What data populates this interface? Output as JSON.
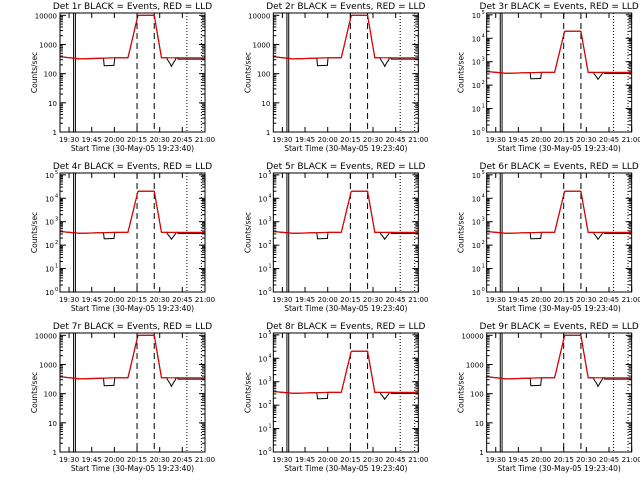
{
  "colors": {
    "events": "#000000",
    "lld": "#e00000",
    "axis": "#000000"
  },
  "chart_data": [
    {
      "type": "line",
      "title": "Det 1r BLACK = Events, RED = LLD",
      "xlabel": "Start Time (30-May-05 19:23:40)",
      "ylabel": "Counts/sec",
      "y_scale": "log",
      "ylim": [
        1,
        12000
      ],
      "y_tick_labels": [
        "1",
        "10",
        "100",
        "1000",
        "10000"
      ],
      "y_tick_values": [
        1,
        10,
        100,
        1000,
        10000
      ],
      "x_tick_labels": [
        "19:30",
        "19:45",
        "20:00",
        "20:15",
        "20:30",
        "20:45",
        "21:00"
      ],
      "x_tick_values": [
        19.5,
        19.75,
        20.0,
        20.25,
        20.5,
        20.75,
        21.0
      ],
      "xlim": [
        19.4,
        21.0
      ],
      "peak": 10000,
      "dashed_lines": [
        20.25,
        20.44
      ],
      "dotted_lines": [
        20.8,
        20.96
      ],
      "solid_lines": [
        19.55,
        19.57
      ]
    },
    {
      "type": "line",
      "title": "Det 2r BLACK = Events, RED = LLD",
      "xlabel": "Start Time (30-May-05 19:23:40)",
      "ylabel": "Counts/sec",
      "y_scale": "log",
      "ylim": [
        1,
        12000
      ],
      "y_tick_labels": [
        "1",
        "10",
        "100",
        "1000",
        "10000"
      ],
      "y_tick_values": [
        1,
        10,
        100,
        1000,
        10000
      ],
      "x_tick_labels": [
        "19:30",
        "19:45",
        "20:00",
        "20:15",
        "20:30",
        "20:45",
        "21:00"
      ],
      "x_tick_values": [
        19.5,
        19.75,
        20.0,
        20.25,
        20.5,
        20.75,
        21.0
      ],
      "xlim": [
        19.4,
        21.0
      ],
      "peak": 10000,
      "dashed_lines": [
        20.25,
        20.44
      ],
      "dotted_lines": [
        20.8,
        20.96
      ],
      "solid_lines": [
        19.55,
        19.57
      ]
    },
    {
      "type": "line",
      "title": "Det 3r BLACK = Events, RED = LLD",
      "xlabel": "Start Time (30-May-05 19:23:40)",
      "ylabel": "Counts/sec",
      "y_scale": "log",
      "ylim": [
        1,
        120000
      ],
      "y_tick_labels": [
        "10",
        "10",
        "10",
        "10",
        "10",
        "10"
      ],
      "y_tick_exponents": [
        "0",
        "1",
        "2",
        "3",
        "4",
        "5"
      ],
      "y_tick_values": [
        1,
        10,
        100,
        1000,
        10000,
        100000
      ],
      "x_tick_labels": [
        "19:30",
        "19:45",
        "20:00",
        "20:15",
        "20:30",
        "20:45",
        "21:00"
      ],
      "x_tick_values": [
        19.5,
        19.75,
        20.0,
        20.25,
        20.5,
        20.75,
        21.0
      ],
      "xlim": [
        19.4,
        21.0
      ],
      "peak": 20000,
      "dashed_lines": [
        20.25,
        20.44
      ],
      "dotted_lines": [
        20.8,
        20.96
      ],
      "solid_lines": [
        19.55,
        19.57
      ]
    },
    {
      "type": "line",
      "title": "Det 4r BLACK = Events, RED = LLD",
      "xlabel": "Start Time (30-May-05 19:23:40)",
      "ylabel": "Counts/sec",
      "y_scale": "log",
      "ylim": [
        1,
        120000
      ],
      "y_tick_labels": [
        "10",
        "10",
        "10",
        "10",
        "10",
        "10"
      ],
      "y_tick_exponents": [
        "0",
        "1",
        "2",
        "3",
        "4",
        "5"
      ],
      "y_tick_values": [
        1,
        10,
        100,
        1000,
        10000,
        100000
      ],
      "x_tick_labels": [
        "19:30",
        "19:45",
        "20:00",
        "20:15",
        "20:30",
        "20:45",
        "21:00"
      ],
      "x_tick_values": [
        19.5,
        19.75,
        20.0,
        20.25,
        20.5,
        20.75,
        21.0
      ],
      "xlim": [
        19.4,
        21.0
      ],
      "peak": 20000,
      "dashed_lines": [
        20.25,
        20.44
      ],
      "dotted_lines": [
        20.8,
        20.96
      ],
      "solid_lines": [
        19.55,
        19.57
      ]
    },
    {
      "type": "line",
      "title": "Det 5r BLACK = Events, RED = LLD",
      "xlabel": "Start Time (30-May-05 19:23:40)",
      "ylabel": "Counts/sec",
      "y_scale": "log",
      "ylim": [
        1,
        120000
      ],
      "y_tick_labels": [
        "10",
        "10",
        "10",
        "10",
        "10",
        "10"
      ],
      "y_tick_exponents": [
        "0",
        "1",
        "2",
        "3",
        "4",
        "5"
      ],
      "y_tick_values": [
        1,
        10,
        100,
        1000,
        10000,
        100000
      ],
      "x_tick_labels": [
        "19:30",
        "19:45",
        "20:00",
        "20:15",
        "20:30",
        "20:45",
        "21:00"
      ],
      "x_tick_values": [
        19.5,
        19.75,
        20.0,
        20.25,
        20.5,
        20.75,
        21.0
      ],
      "xlim": [
        19.4,
        21.0
      ],
      "peak": 20000,
      "dashed_lines": [
        20.25,
        20.44
      ],
      "dotted_lines": [
        20.8,
        20.96
      ],
      "solid_lines": [
        19.55,
        19.57
      ]
    },
    {
      "type": "line",
      "title": "Det 6r BLACK = Events, RED = LLD",
      "xlabel": "Start Time (30-May-05 19:23:40)",
      "ylabel": "Counts/sec",
      "y_scale": "log",
      "ylim": [
        1,
        120000
      ],
      "y_tick_labels": [
        "10",
        "10",
        "10",
        "10",
        "10",
        "10"
      ],
      "y_tick_exponents": [
        "0",
        "1",
        "2",
        "3",
        "4",
        "5"
      ],
      "y_tick_values": [
        1,
        10,
        100,
        1000,
        10000,
        100000
      ],
      "x_tick_labels": [
        "19:30",
        "19:45",
        "20:00",
        "20:15",
        "20:30",
        "20:45",
        "21:00"
      ],
      "x_tick_values": [
        19.5,
        19.75,
        20.0,
        20.25,
        20.5,
        20.75,
        21.0
      ],
      "xlim": [
        19.4,
        21.0
      ],
      "peak": 20000,
      "dashed_lines": [
        20.25,
        20.44
      ],
      "dotted_lines": [
        20.8,
        20.96
      ],
      "solid_lines": [
        19.55,
        19.57
      ]
    },
    {
      "type": "line",
      "title": "Det 7r BLACK = Events, RED = LLD",
      "xlabel": "Start Time (30-May-05 19:23:40)",
      "ylabel": "Counts/sec",
      "y_scale": "log",
      "ylim": [
        1,
        12000
      ],
      "y_tick_labels": [
        "1",
        "10",
        "100",
        "1000",
        "10000"
      ],
      "y_tick_values": [
        1,
        10,
        100,
        1000,
        10000
      ],
      "x_tick_labels": [
        "19:30",
        "19:45",
        "20:00",
        "20:15",
        "20:30",
        "20:45",
        "21:00"
      ],
      "x_tick_values": [
        19.5,
        19.75,
        20.0,
        20.25,
        20.5,
        20.75,
        21.0
      ],
      "xlim": [
        19.4,
        21.0
      ],
      "peak": 10000,
      "dashed_lines": [
        20.25,
        20.44
      ],
      "dotted_lines": [
        20.8,
        20.96
      ],
      "solid_lines": [
        19.55,
        19.57
      ]
    },
    {
      "type": "line",
      "title": "Det 8r BLACK = Events, RED = LLD",
      "xlabel": "Start Time (30-May-05 19:23:40)",
      "ylabel": "Counts/sec",
      "y_scale": "log",
      "ylim": [
        1,
        120000
      ],
      "y_tick_labels": [
        "10",
        "10",
        "10",
        "10",
        "10",
        "10"
      ],
      "y_tick_exponents": [
        "0",
        "1",
        "2",
        "3",
        "4",
        "5"
      ],
      "y_tick_values": [
        1,
        10,
        100,
        1000,
        10000,
        100000
      ],
      "x_tick_labels": [
        "19:30",
        "19:45",
        "20:00",
        "20:15",
        "20:30",
        "20:45",
        "21:00"
      ],
      "x_tick_values": [
        19.5,
        19.75,
        20.0,
        20.25,
        20.5,
        20.75,
        21.0
      ],
      "xlim": [
        19.4,
        21.0
      ],
      "peak": 20000,
      "dashed_lines": [
        20.25,
        20.44
      ],
      "dotted_lines": [
        20.8,
        20.96
      ],
      "solid_lines": [
        19.55,
        19.57
      ]
    },
    {
      "type": "line",
      "title": "Det 9r BLACK = Events, RED = LLD",
      "xlabel": "Start Time (30-May-05 19:23:40)",
      "ylabel": "Counts/sec",
      "y_scale": "log",
      "ylim": [
        1,
        12000
      ],
      "y_tick_labels": [
        "1",
        "10",
        "100",
        "1000",
        "10000"
      ],
      "y_tick_values": [
        1,
        10,
        100,
        1000,
        10000
      ],
      "x_tick_labels": [
        "19:30",
        "19:45",
        "20:00",
        "20:15",
        "20:30",
        "20:45",
        "21:00"
      ],
      "x_tick_values": [
        19.5,
        19.75,
        20.0,
        20.25,
        20.5,
        20.75,
        21.0
      ],
      "xlim": [
        19.4,
        21.0
      ],
      "peak": 10000,
      "dashed_lines": [
        20.25,
        20.44
      ],
      "dotted_lines": [
        20.8,
        20.96
      ],
      "solid_lines": [
        19.55,
        19.57
      ]
    }
  ]
}
